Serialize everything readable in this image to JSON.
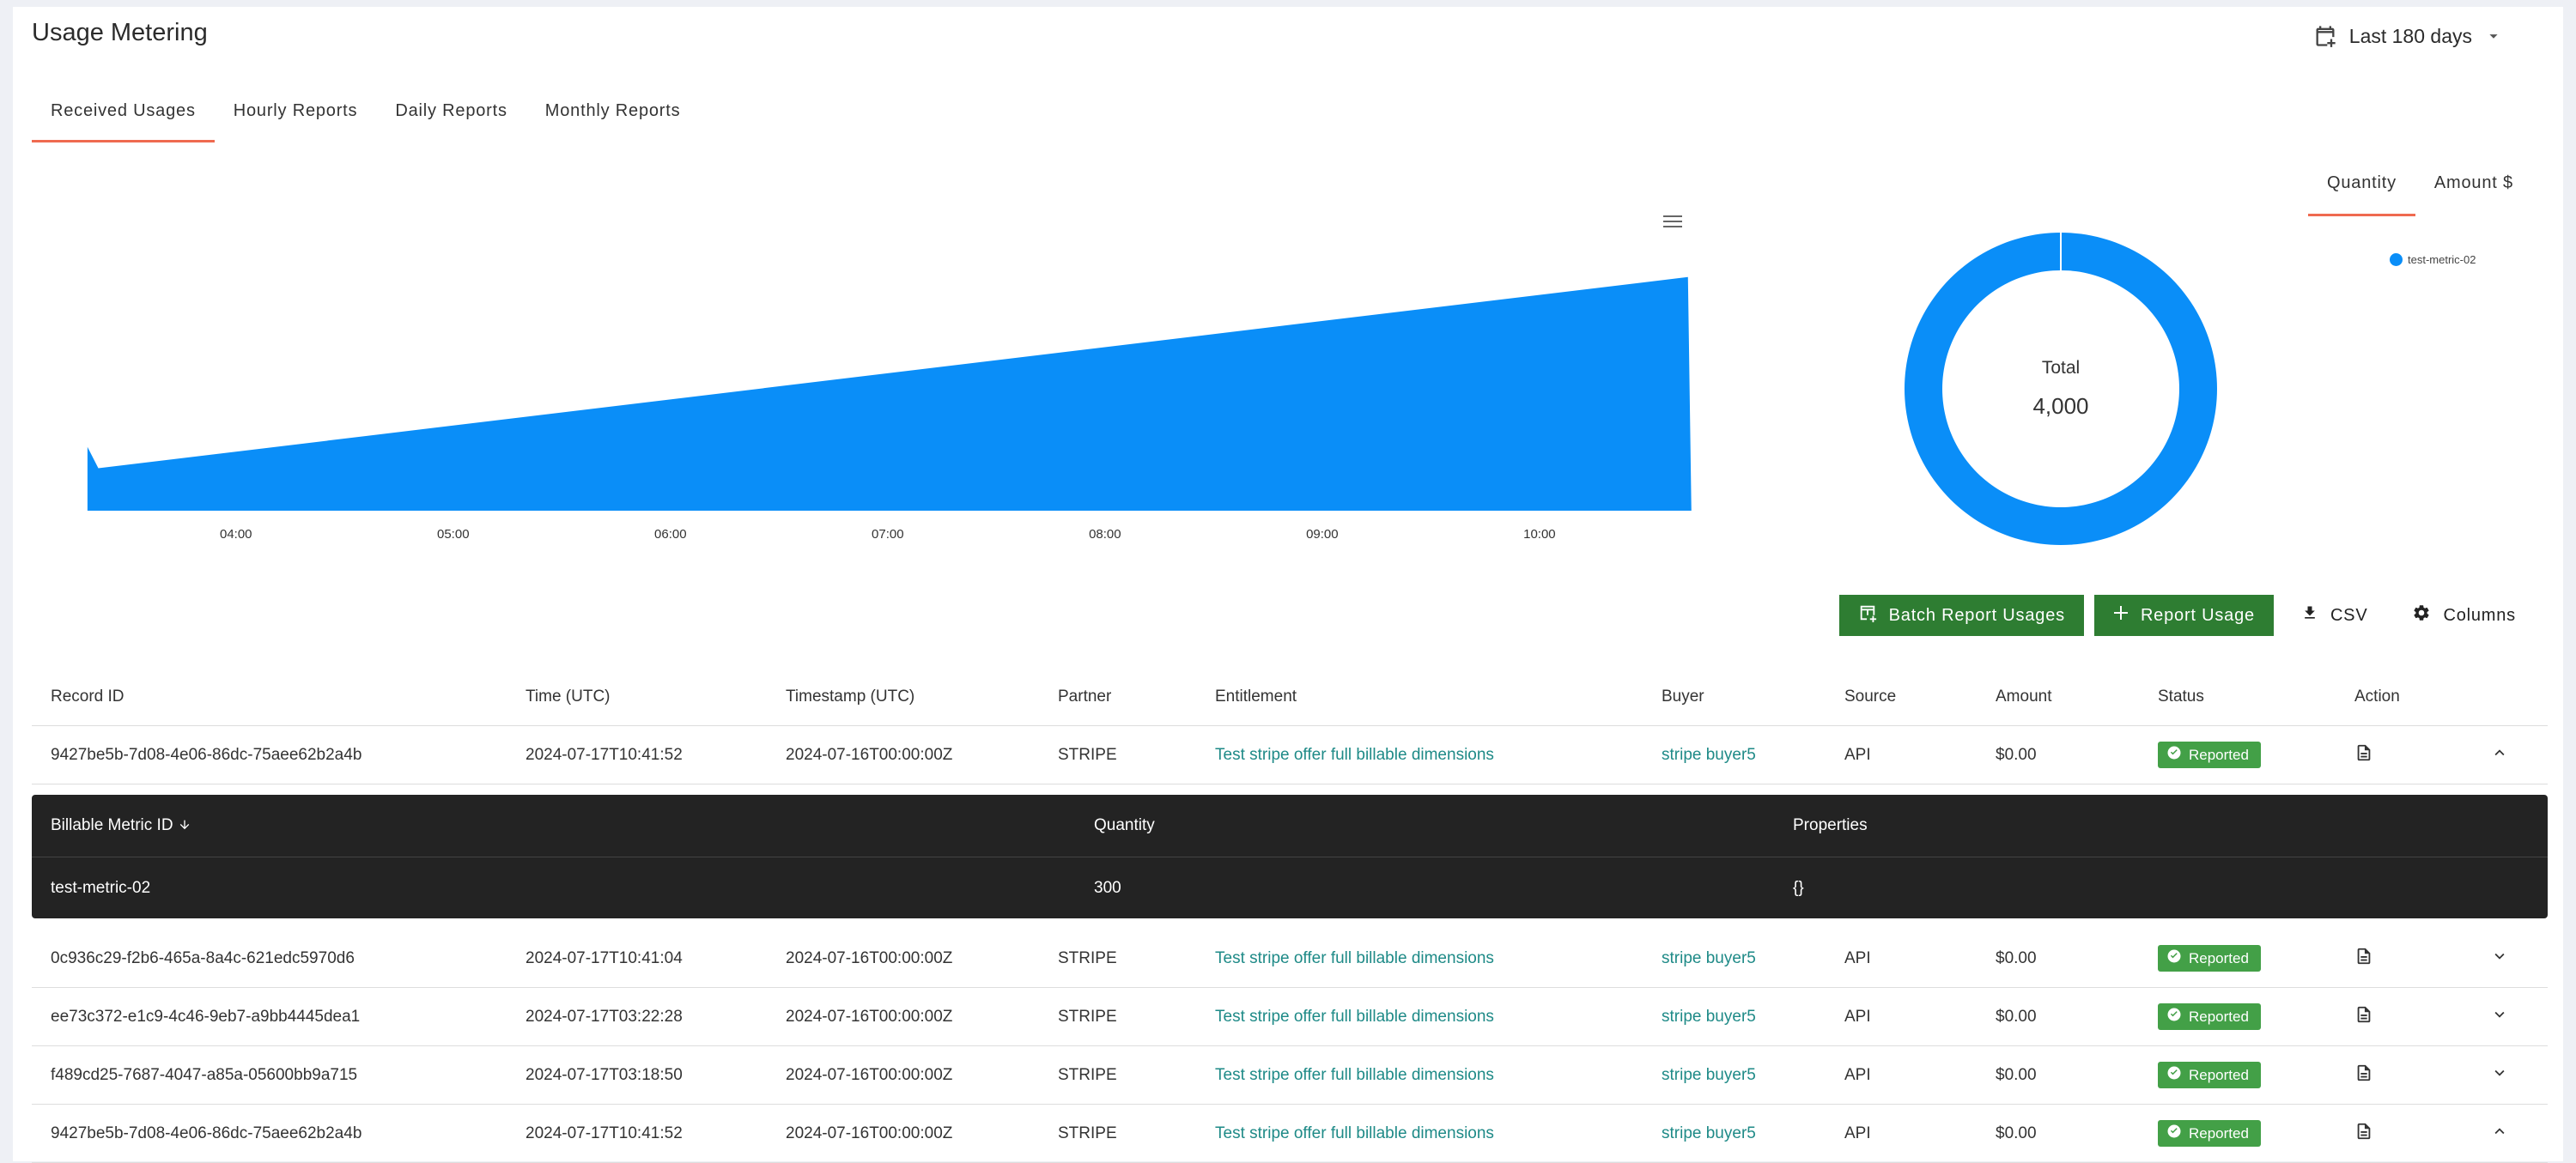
{
  "page": {
    "title": "Usage Metering"
  },
  "date_range": {
    "label": "Last 180 days",
    "icon": "calendar-icon"
  },
  "tabs": [
    {
      "label": "Received Usages",
      "active": true
    },
    {
      "label": "Hourly Reports"
    },
    {
      "label": "Daily Reports"
    },
    {
      "label": "Monthly Reports"
    }
  ],
  "metric_tabs": [
    {
      "label": "Quantity",
      "active": true
    },
    {
      "label": "Amount $"
    }
  ],
  "chart_data": [
    {
      "type": "area",
      "x": [
        "03:19",
        "03:22",
        "10:41",
        "10:41"
      ],
      "y": [
        300,
        200,
        1100,
        0
      ],
      "xticks": [
        "04:00",
        "05:00",
        "06:00",
        "07:00",
        "08:00",
        "09:00",
        "10:00"
      ],
      "color": "#0a8ef8",
      "grid": false
    },
    {
      "type": "pie",
      "variant": "donut",
      "labels": [
        "test-metric-02"
      ],
      "values": [
        4000
      ],
      "center_label": "Total",
      "center_value": "4,000",
      "legend": "top-right",
      "color": "#0a8ef8"
    }
  ],
  "toolbar": {
    "batch_report": "Batch Report Usages",
    "report_usage": "Report Usage",
    "csv": "CSV",
    "columns": "Columns"
  },
  "table": {
    "headers": [
      "Record ID",
      "Time (UTC)",
      "Timestamp (UTC)",
      "Partner",
      "Entitlement",
      "Buyer",
      "Source",
      "Amount",
      "Status",
      "Action"
    ],
    "rows": [
      {
        "record_id": "9427be5b-7d08-4e06-86dc-75aee62b2a4b",
        "time": "2024-07-17T10:41:52",
        "timestamp": "2024-07-16T00:00:00Z",
        "partner": "STRIPE",
        "entitlement": "Test stripe offer full billable dimensions",
        "buyer": "stripe buyer5",
        "source": "API",
        "amount": "$0.00",
        "status": "Reported",
        "expanded": true
      },
      {
        "record_id": "0c936c29-f2b6-465a-8a4c-621edc5970d6",
        "time": "2024-07-17T10:41:04",
        "timestamp": "2024-07-16T00:00:00Z",
        "partner": "STRIPE",
        "entitlement": "Test stripe offer full billable dimensions",
        "buyer": "stripe buyer5",
        "source": "API",
        "amount": "$0.00",
        "status": "Reported",
        "expanded": false
      },
      {
        "record_id": "ee73c372-e1c9-4c46-9eb7-a9bb4445dea1",
        "time": "2024-07-17T03:22:28",
        "timestamp": "2024-07-16T00:00:00Z",
        "partner": "STRIPE",
        "entitlement": "Test stripe offer full billable dimensions",
        "buyer": "stripe buyer5",
        "source": "API",
        "amount": "$0.00",
        "status": "Reported",
        "expanded": false
      },
      {
        "record_id": "f489cd25-7687-4047-a85a-05600bb9a715",
        "time": "2024-07-17T03:18:50",
        "timestamp": "2024-07-16T00:00:00Z",
        "partner": "STRIPE",
        "entitlement": "Test stripe offer full billable dimensions",
        "buyer": "stripe buyer5",
        "source": "API",
        "amount": "$0.00",
        "status": "Reported",
        "expanded": false
      },
      {
        "record_id": "9427be5b-7d08-4e06-86dc-75aee62b2a4b",
        "time": "2024-07-17T10:41:52",
        "timestamp": "2024-07-16T00:00:00Z",
        "partner": "STRIPE",
        "entitlement": "Test stripe offer full billable dimensions",
        "buyer": "stripe buyer5",
        "source": "API",
        "amount": "$0.00",
        "status": "Reported",
        "expanded": true
      }
    ],
    "subtable": {
      "headers": [
        "Billable Metric ID",
        "Quantity",
        "Properties"
      ],
      "row": {
        "metric_id": "test-metric-02",
        "quantity": "300",
        "properties": "{}"
      }
    }
  },
  "colors": {
    "accent": "#ef6a50",
    "green": "#2e7d32",
    "badge": "#43a047",
    "link": "#1e8a87",
    "chart": "#0a8ef8"
  }
}
